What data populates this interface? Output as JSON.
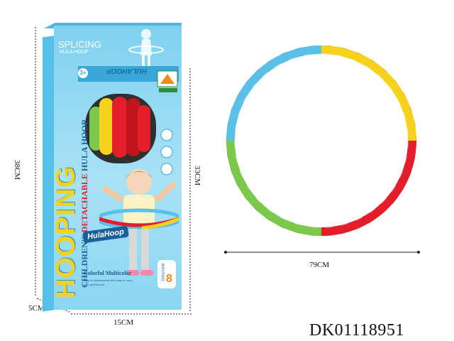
{
  "box": {
    "splicing": "SPLICING",
    "hula_hoop_sub": "HULA HOOP",
    "hooping": "HOOPING",
    "childrens": "CHILDREN'S",
    "detachable": "DETACHABLE",
    "hula_hoop": "HULA HOOP",
    "brand_logo": "HulaHoop",
    "colorful": "Colorful Multicolor",
    "small_line_1": "Easy to disassemble and easy to carry",
    "small_line_2": "your getting rest",
    "detachable_badge": "Detachable",
    "badge_number": "8",
    "age_badge": "3+",
    "spine_text": "HULAHOOP"
  },
  "dimensions": {
    "height": "38CM",
    "depth": "5CM",
    "width": "15CM",
    "inner_height": "33CM",
    "hoop_diameter": "79CM"
  },
  "product_code": "DK01118951",
  "colors": {
    "box": "#8ad6f1",
    "blue": "#5bc0e8",
    "yellow": "#f6d21c",
    "red": "#e21e2a",
    "green": "#7cc84a"
  }
}
